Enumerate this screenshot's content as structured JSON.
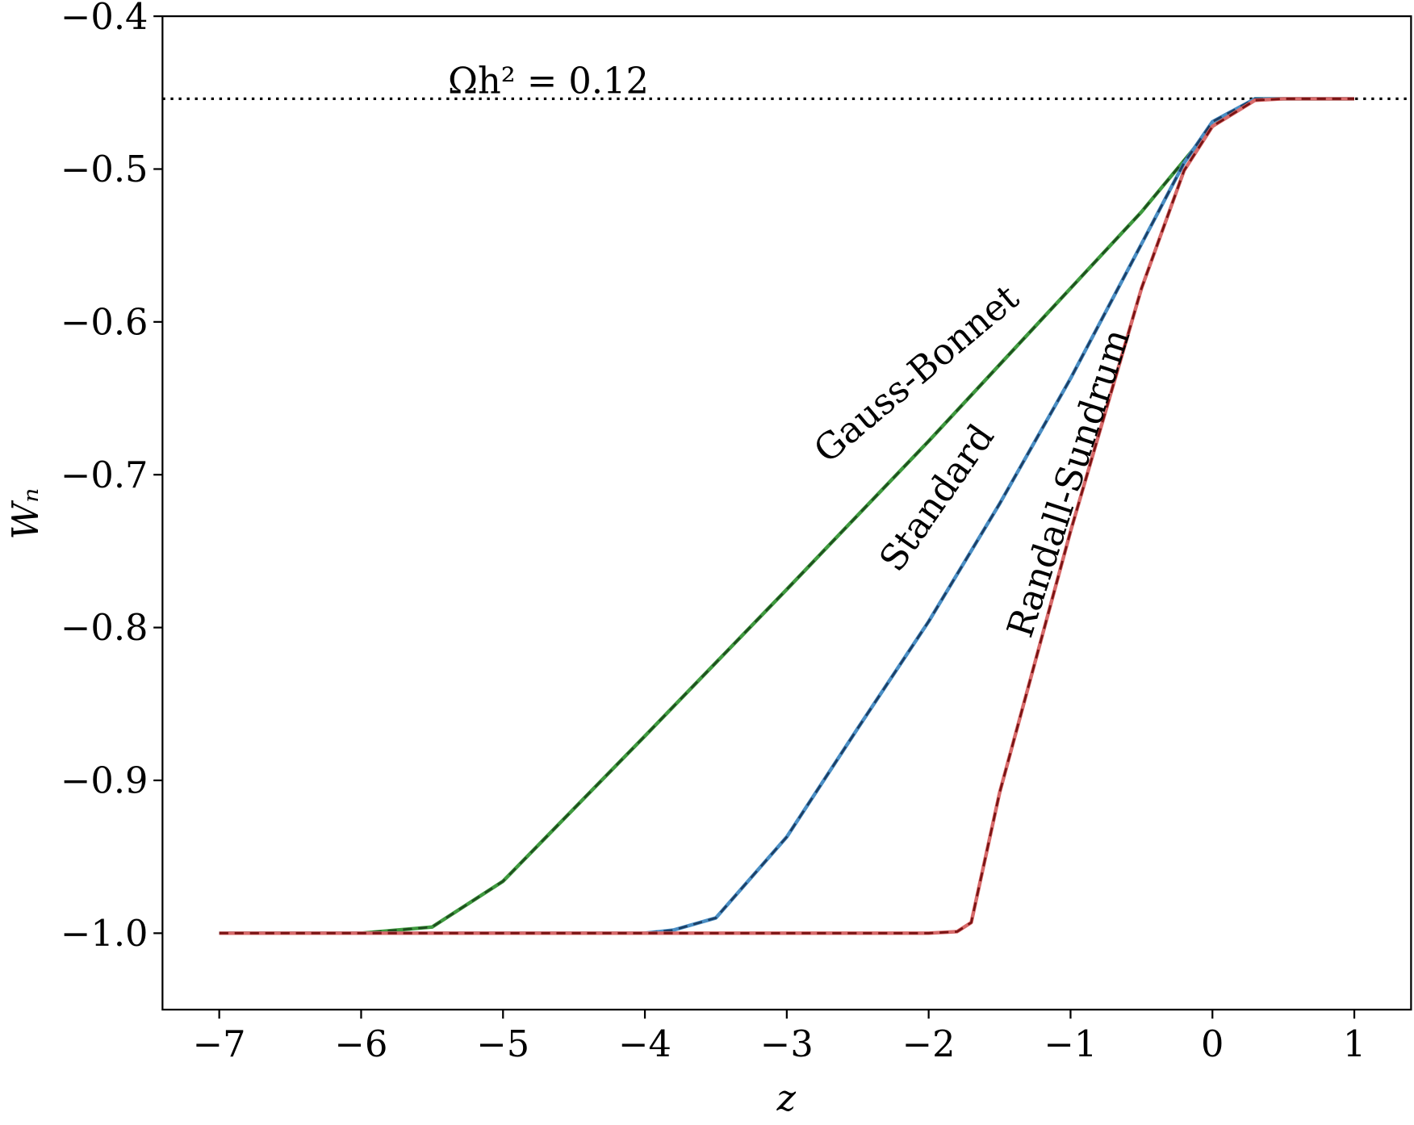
{
  "chart_data": {
    "type": "line",
    "xlabel": "z",
    "ylabel": "Wₙ",
    "xlim": [
      -7.4,
      1.4
    ],
    "ylim": [
      -1.05,
      -0.4
    ],
    "xticks": [
      {
        "value": -7,
        "label": "−7"
      },
      {
        "value": -6,
        "label": "−6"
      },
      {
        "value": -5,
        "label": "−5"
      },
      {
        "value": -4,
        "label": "−4"
      },
      {
        "value": -3,
        "label": "−3"
      },
      {
        "value": -2,
        "label": "−2"
      },
      {
        "value": -1,
        "label": "−1"
      },
      0,
      1
    ],
    "yticks": [
      {
        "value": -0.4,
        "label": "−0.4"
      },
      {
        "value": -0.5,
        "label": "−0.5"
      },
      {
        "value": -0.6,
        "label": "−0.6"
      },
      {
        "value": -0.7,
        "label": "−0.7"
      },
      {
        "value": -0.8,
        "label": "−0.8"
      },
      {
        "value": -0.9,
        "label": "−0.9"
      },
      {
        "value": -1.0,
        "label": "−1.0"
      }
    ],
    "hline": {
      "value": -0.454,
      "label": "Ωh² = 0.12",
      "color": "#000000"
    },
    "series": [
      {
        "name": "Gauss-Bonnet",
        "color": "#3f9a3f",
        "dash_color": "#1e4f1e",
        "x": [
          -7,
          -6,
          -5.5,
          -5,
          -4,
          -3,
          -2,
          -1,
          -0.5,
          0,
          0.3,
          1
        ],
        "values": [
          -1.0,
          -1.0,
          -0.996,
          -0.966,
          -0.871,
          -0.775,
          -0.678,
          -0.578,
          -0.528,
          -0.472,
          -0.454,
          -0.454
        ]
      },
      {
        "name": "Standard",
        "color": "#4a8ec4",
        "dash_color": "#1c3f66",
        "x": [
          -7,
          -4,
          -3.8,
          -3.5,
          -3,
          -2.5,
          -2,
          -1.5,
          -1,
          -0.5,
          -0.2,
          0,
          0.3,
          1
        ],
        "values": [
          -1.0,
          -1.0,
          -0.998,
          -0.99,
          -0.937,
          -0.866,
          -0.796,
          -0.719,
          -0.637,
          -0.549,
          -0.496,
          -0.469,
          -0.454,
          -0.454
        ]
      },
      {
        "name": "Randall-Sundrum",
        "color": "#d86a6a",
        "dash_color": "#7a1414",
        "x": [
          -7,
          -2,
          -1.8,
          -1.7,
          -1.5,
          -1,
          -0.5,
          -0.2,
          0,
          0.3,
          0.5,
          1
        ],
        "values": [
          -1.0,
          -1.0,
          -0.999,
          -0.993,
          -0.908,
          -0.737,
          -0.578,
          -0.501,
          -0.472,
          -0.455,
          -0.454,
          -0.454
        ]
      }
    ]
  }
}
